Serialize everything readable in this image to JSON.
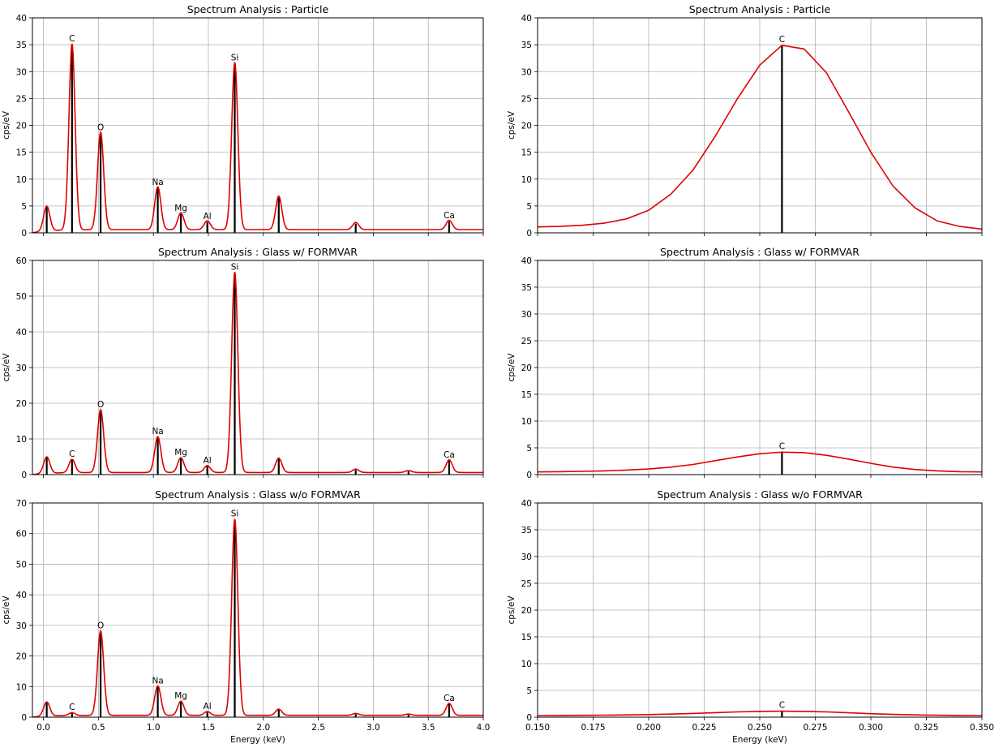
{
  "figure": {
    "xlabel_bottom": "Energy (keV)"
  },
  "chart_data": [
    {
      "type": "line",
      "title": "Spectrum Analysis : Particle",
      "xlabel": "",
      "ylabel": "cps/eV",
      "xlim": [
        -0.1,
        4.0
      ],
      "ylim": [
        0,
        40
      ],
      "xticks": [
        0.0,
        0.5,
        1.0,
        1.5,
        2.0,
        2.5,
        3.0,
        3.5,
        4.0
      ],
      "yticks": [
        0,
        5,
        10,
        15,
        20,
        25,
        30,
        35,
        40
      ],
      "xtick_labels": [],
      "grid": true,
      "baseline": 0.6,
      "series_color": "#e00000",
      "peaks": [
        {
          "x": 0.03,
          "y": 5.0,
          "label": ""
        },
        {
          "x": 0.26,
          "y": 35.0,
          "label": "C"
        },
        {
          "x": 0.52,
          "y": 18.5,
          "label": "O"
        },
        {
          "x": 1.04,
          "y": 8.3,
          "label": "Na"
        },
        {
          "x": 1.25,
          "y": 3.5,
          "label": "Mg"
        },
        {
          "x": 1.49,
          "y": 2.0,
          "label": "Al"
        },
        {
          "x": 1.74,
          "y": 31.5,
          "label": "Si"
        },
        {
          "x": 2.14,
          "y": 6.6,
          "label": ""
        },
        {
          "x": 2.84,
          "y": 1.7,
          "label": ""
        },
        {
          "x": 3.69,
          "y": 2.1,
          "label": "Ca"
        }
      ]
    },
    {
      "type": "line",
      "title": "Spectrum Analysis : Particle",
      "xlabel": "",
      "ylabel": "cps/eV",
      "xlim": [
        0.15,
        0.35
      ],
      "ylim": [
        0,
        40
      ],
      "xticks": [
        0.15,
        0.175,
        0.2,
        0.225,
        0.25,
        0.275,
        0.3,
        0.325,
        0.35
      ],
      "yticks": [
        0,
        5,
        10,
        15,
        20,
        25,
        30,
        35,
        40
      ],
      "xtick_labels": [],
      "grid": true,
      "x": [
        0.15,
        0.16,
        0.17,
        0.18,
        0.19,
        0.2,
        0.21,
        0.22,
        0.23,
        0.24,
        0.25,
        0.26,
        0.27,
        0.28,
        0.29,
        0.3,
        0.31,
        0.32,
        0.33,
        0.34,
        0.35
      ],
      "y": [
        1.1,
        1.2,
        1.4,
        1.8,
        2.6,
        4.2,
        7.2,
        11.7,
        18.0,
        25.0,
        31.2,
        34.9,
        34.2,
        29.8,
        22.5,
        15.0,
        8.7,
        4.6,
        2.2,
        1.2,
        0.7
      ],
      "series_color": "#e00000",
      "marker": {
        "x": 0.26,
        "y": 34.9,
        "label": "C"
      }
    },
    {
      "type": "line",
      "title": "Spectrum Analysis : Glass w/ FORMVAR",
      "xlabel": "",
      "ylabel": "cps/eV",
      "xlim": [
        -0.1,
        4.0
      ],
      "ylim": [
        0,
        60
      ],
      "xticks": [
        0.0,
        0.5,
        1.0,
        1.5,
        2.0,
        2.5,
        3.0,
        3.5,
        4.0
      ],
      "yticks": [
        0,
        10,
        20,
        30,
        40,
        50,
        60
      ],
      "xtick_labels": [],
      "grid": true,
      "baseline": 0.6,
      "series_color": "#e00000",
      "peaks": [
        {
          "x": 0.03,
          "y": 5.0,
          "label": ""
        },
        {
          "x": 0.26,
          "y": 4.1,
          "label": "C"
        },
        {
          "x": 0.52,
          "y": 18.0,
          "label": "O"
        },
        {
          "x": 1.04,
          "y": 10.4,
          "label": "Na"
        },
        {
          "x": 1.25,
          "y": 4.5,
          "label": "Mg"
        },
        {
          "x": 1.49,
          "y": 2.3,
          "label": "Al"
        },
        {
          "x": 1.74,
          "y": 56.5,
          "label": "Si"
        },
        {
          "x": 2.14,
          "y": 4.4,
          "label": ""
        },
        {
          "x": 2.84,
          "y": 1.3,
          "label": ""
        },
        {
          "x": 3.32,
          "y": 0.9,
          "label": ""
        },
        {
          "x": 3.69,
          "y": 3.9,
          "label": "Ca"
        }
      ]
    },
    {
      "type": "line",
      "title": "Spectrum Analysis : Glass w/ FORMVAR",
      "xlabel": "",
      "ylabel": "cps/eV",
      "xlim": [
        0.15,
        0.35
      ],
      "ylim": [
        0,
        40
      ],
      "xticks": [
        0.15,
        0.175,
        0.2,
        0.225,
        0.25,
        0.275,
        0.3,
        0.325,
        0.35
      ],
      "yticks": [
        0,
        5,
        10,
        15,
        20,
        25,
        30,
        35,
        40
      ],
      "xtick_labels": [],
      "grid": true,
      "x": [
        0.15,
        0.16,
        0.17,
        0.18,
        0.19,
        0.2,
        0.21,
        0.22,
        0.23,
        0.24,
        0.25,
        0.26,
        0.27,
        0.28,
        0.29,
        0.3,
        0.31,
        0.32,
        0.33,
        0.34,
        0.35
      ],
      "y": [
        0.5,
        0.55,
        0.6,
        0.7,
        0.85,
        1.05,
        1.4,
        1.9,
        2.6,
        3.3,
        3.9,
        4.2,
        4.1,
        3.6,
        2.9,
        2.1,
        1.4,
        0.95,
        0.7,
        0.55,
        0.5
      ],
      "series_color": "#e00000",
      "marker": {
        "x": 0.26,
        "y": 4.2,
        "label": "C"
      }
    },
    {
      "type": "line",
      "title": "Spectrum Analysis : Glass w/o FORMVAR",
      "xlabel": "Energy (keV)",
      "ylabel": "cps/eV",
      "xlim": [
        -0.1,
        4.0
      ],
      "ylim": [
        0,
        70
      ],
      "xticks": [
        0.0,
        0.5,
        1.0,
        1.5,
        2.0,
        2.5,
        3.0,
        3.5,
        4.0
      ],
      "yticks": [
        0,
        10,
        20,
        30,
        40,
        50,
        60,
        70
      ],
      "xtick_labels": [
        "0.0",
        "0.5",
        "1.0",
        "1.5",
        "2.0",
        "2.5",
        "3.0",
        "3.5",
        "4.0"
      ],
      "grid": true,
      "baseline": 0.6,
      "series_color": "#e00000",
      "peaks": [
        {
          "x": 0.03,
          "y": 5.0,
          "label": ""
        },
        {
          "x": 0.26,
          "y": 1.3,
          "label": "C"
        },
        {
          "x": 0.52,
          "y": 28.0,
          "label": "O"
        },
        {
          "x": 1.04,
          "y": 10.0,
          "label": "Na"
        },
        {
          "x": 1.25,
          "y": 5.0,
          "label": "Mg"
        },
        {
          "x": 1.49,
          "y": 1.6,
          "label": "Al"
        },
        {
          "x": 1.74,
          "y": 64.5,
          "label": "Si"
        },
        {
          "x": 2.14,
          "y": 2.4,
          "label": ""
        },
        {
          "x": 2.84,
          "y": 1.0,
          "label": ""
        },
        {
          "x": 3.32,
          "y": 0.8,
          "label": ""
        },
        {
          "x": 3.69,
          "y": 4.3,
          "label": "Ca"
        }
      ]
    },
    {
      "type": "line",
      "title": "Spectrum Analysis : Glass w/o FORMVAR",
      "xlabel": "Energy (keV)",
      "ylabel": "cps/eV",
      "xlim": [
        0.15,
        0.35
      ],
      "ylim": [
        0,
        40
      ],
      "xticks": [
        0.15,
        0.175,
        0.2,
        0.225,
        0.25,
        0.275,
        0.3,
        0.325,
        0.35
      ],
      "yticks": [
        0,
        5,
        10,
        15,
        20,
        25,
        30,
        35,
        40
      ],
      "xtick_labels": [
        "0.150",
        "0.175",
        "0.200",
        "0.225",
        "0.250",
        "0.275",
        "0.300",
        "0.325",
        "0.350"
      ],
      "grid": true,
      "x": [
        0.15,
        0.16,
        0.17,
        0.18,
        0.19,
        0.2,
        0.21,
        0.22,
        0.23,
        0.24,
        0.25,
        0.26,
        0.27,
        0.28,
        0.29,
        0.3,
        0.31,
        0.32,
        0.33,
        0.34,
        0.35
      ],
      "y": [
        0.3,
        0.32,
        0.35,
        0.38,
        0.42,
        0.48,
        0.58,
        0.7,
        0.85,
        0.98,
        1.08,
        1.12,
        1.08,
        0.98,
        0.82,
        0.65,
        0.52,
        0.42,
        0.36,
        0.32,
        0.3
      ],
      "series_color": "#e00000",
      "marker": {
        "x": 0.26,
        "y": 1.12,
        "label": "C"
      }
    }
  ]
}
